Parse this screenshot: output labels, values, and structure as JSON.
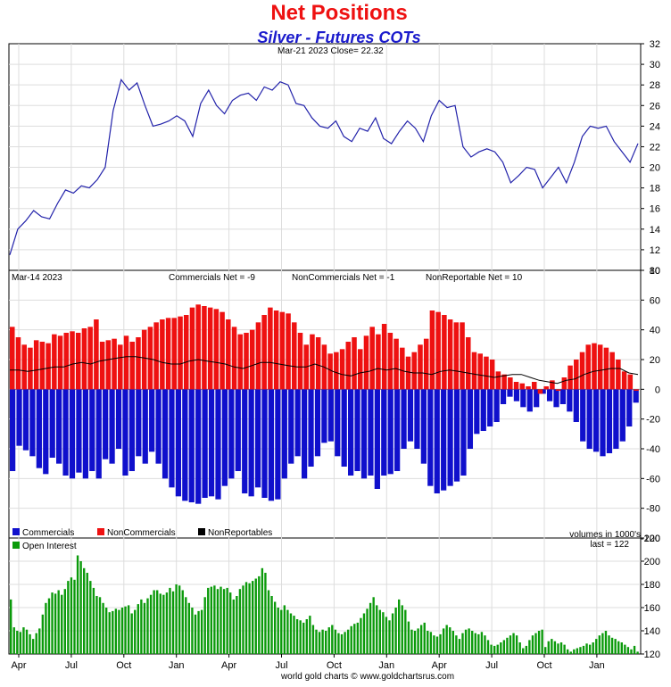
{
  "title": "Net Positions",
  "subtitle": "Silver - Futures COTs",
  "footer": "world gold charts © www.goldchartsrus.com",
  "colors": {
    "title": "#ee1111",
    "subtitle": "#1a1acc",
    "price_line": "#2222aa",
    "commercials": "#1010cc",
    "noncommercials": "#ee1111",
    "nonreportables": "#000000",
    "open_interest": "#0a9a0a"
  },
  "chart_data": [
    {
      "type": "line",
      "header": "Mar-21  2023    Close= 22.32",
      "ylim": [
        10,
        32
      ],
      "yticks": [
        "10",
        "12",
        "14",
        "16",
        "18",
        "20",
        "22",
        "24",
        "26",
        "28",
        "30",
        "32"
      ],
      "x_labels": [
        "Apr",
        "Jul",
        "Oct",
        "Jan",
        "Apr",
        "Jul",
        "Oct",
        "Jan",
        "Apr",
        "Jul",
        "Oct",
        "Jan"
      ],
      "series": [
        {
          "values": [
            11.5,
            14.0,
            14.8,
            15.8,
            15.2,
            15.0,
            16.5,
            17.8,
            17.5,
            18.2,
            18.0,
            18.8,
            20.0,
            25.5,
            28.5,
            27.5,
            28.2,
            26.0,
            24.0,
            24.2,
            24.5,
            25.0,
            24.5,
            23.0,
            26.2,
            27.5,
            26.0,
            25.2,
            26.5,
            27.0,
            27.2,
            26.5,
            27.8,
            27.5,
            28.3,
            28.0,
            26.2,
            26.0,
            24.8,
            24.0,
            23.8,
            24.5,
            23.0,
            22.5,
            23.8,
            23.5,
            24.8,
            22.8,
            22.3,
            23.5,
            24.5,
            23.8,
            22.5,
            25.0,
            26.5,
            25.8,
            26.0,
            22.0,
            21.0,
            21.5,
            21.8,
            21.5,
            20.5,
            18.5,
            19.2,
            20.0,
            19.8,
            18.0,
            19.0,
            20.0,
            18.5,
            20.5,
            23.0,
            24.0,
            23.8,
            24.0,
            22.5,
            21.5,
            20.5,
            22.32
          ]
        }
      ]
    },
    {
      "type": "bar",
      "header": "Mar-14  2023",
      "readouts": [
        "Commercials Net = -9",
        "NonCommercials Net = -1",
        "NonReportable Net = 10"
      ],
      "ylim": [
        -100,
        80
      ],
      "yticks": [
        "-100",
        "-80",
        "-60",
        "-40",
        "-20",
        "0",
        "20",
        "40",
        "60",
        "80"
      ],
      "legend": [
        "Commercials",
        "NonCommercials",
        "NonReportables"
      ],
      "series": [
        {
          "name": "Commercials",
          "values": [
            -55,
            -38,
            -41,
            -45,
            -53,
            -57,
            -46,
            -50,
            -58,
            -60,
            -56,
            -60,
            -55,
            -60,
            -47,
            -50,
            -40,
            -58,
            -55,
            -45,
            -50,
            -42,
            -50,
            -60,
            -66,
            -72,
            -75,
            -76,
            -77,
            -73,
            -72,
            -74,
            -65,
            -60,
            -55,
            -70,
            -72,
            -66,
            -73,
            -75,
            -74,
            -60,
            -50,
            -45,
            -60,
            -52,
            -45,
            -36,
            -35,
            -45,
            -52,
            -58,
            -55,
            -60,
            -58,
            -67,
            -58,
            -57,
            -55,
            -40,
            -35,
            -40,
            -50,
            -65,
            -70,
            -68,
            -65,
            -62,
            -58,
            -40,
            -30,
            -28,
            -25,
            -22,
            -10,
            -5,
            -8,
            -12,
            -15,
            -12,
            -3,
            -8,
            -12,
            -10,
            -15,
            -22,
            -35,
            -40,
            -42,
            -45,
            -43,
            -40,
            -35,
            -25,
            -9
          ],
          "color": "#1010cc"
        },
        {
          "name": "NonCommercials",
          "values": [
            42,
            35,
            30,
            28,
            33,
            32,
            31,
            37,
            36,
            38,
            39,
            38,
            41,
            42,
            47,
            32,
            33,
            34,
            30,
            36,
            32,
            35,
            40,
            42,
            45,
            47,
            48,
            48,
            49,
            50,
            55,
            57,
            56,
            55,
            54,
            52,
            47,
            42,
            37,
            38,
            40,
            45,
            50,
            55,
            53,
            52,
            51,
            45,
            38,
            30,
            37,
            35,
            30,
            24,
            25,
            27,
            32,
            35,
            27,
            36,
            42,
            37,
            44,
            38,
            34,
            28,
            22,
            25,
            30,
            34,
            53,
            52,
            50,
            47,
            45,
            45,
            35,
            25,
            24,
            22,
            20,
            12,
            10,
            8,
            5,
            4,
            2,
            5,
            -3,
            2,
            6,
            -1,
            8,
            16,
            20,
            25,
            30,
            31,
            30,
            28,
            25,
            20,
            12,
            10,
            -1
          ],
          "color": "#ee1111"
        },
        {
          "name": "NonReportables",
          "values": [
            13,
            13,
            12,
            13,
            14,
            15,
            15,
            17,
            18,
            17,
            19,
            20,
            21,
            22,
            22,
            21,
            20,
            18,
            17,
            17,
            19,
            20,
            19,
            18,
            17,
            15,
            14,
            16,
            18,
            18,
            17,
            16,
            15,
            15,
            17,
            15,
            12,
            10,
            9,
            11,
            12,
            14,
            13,
            14,
            12,
            11,
            11,
            10,
            12,
            13,
            12,
            11,
            10,
            9,
            8,
            9,
            10,
            10,
            8,
            6,
            5,
            4,
            6,
            7,
            10,
            12,
            13,
            14,
            14,
            11,
            10
          ],
          "color": "#000000"
        }
      ]
    },
    {
      "type": "bar",
      "header_right": [
        "volumes in 1000's",
        "last = 122"
      ],
      "ylim": [
        120,
        220
      ],
      "yticks": [
        "120",
        "140",
        "160",
        "180",
        "200",
        "220"
      ],
      "legend": [
        "Open Interest"
      ],
      "series": [
        {
          "name": "Open Interest",
          "values": [
            167,
            143,
            140,
            139,
            143,
            141,
            137,
            133,
            138,
            142,
            154,
            164,
            168,
            173,
            172,
            175,
            171,
            176,
            183,
            186,
            184,
            205,
            200,
            194,
            190,
            183,
            177,
            170,
            169,
            164,
            160,
            156,
            157,
            159,
            158,
            160,
            161,
            162,
            155,
            158,
            163,
            167,
            164,
            168,
            171,
            175,
            175,
            172,
            171,
            173,
            177,
            174,
            180,
            179,
            175,
            169,
            164,
            160,
            154,
            157,
            158,
            169,
            177,
            178,
            179,
            176,
            178,
            176,
            177,
            173,
            167,
            170,
            176,
            179,
            182,
            181,
            183,
            185,
            187,
            194,
            190,
            175,
            170,
            165,
            160,
            158,
            162,
            158,
            155,
            153,
            150,
            149,
            147,
            150,
            153,
            145,
            141,
            139,
            141,
            140,
            143,
            145,
            141,
            138,
            137,
            139,
            141,
            144,
            146,
            147,
            151,
            155,
            159,
            164,
            169,
            162,
            158,
            156,
            152,
            149,
            155,
            160,
            167,
            162,
            158,
            148,
            141,
            140,
            142,
            145,
            147,
            140,
            139,
            136,
            135,
            137,
            142,
            145,
            143,
            140,
            136,
            133,
            138,
            141,
            142,
            140,
            138,
            137,
            139,
            136,
            132,
            128,
            127,
            128,
            130,
            132,
            134,
            136,
            138,
            136,
            130,
            125,
            127,
            132,
            136,
            138,
            140,
            141,
            126,
            131,
            133,
            131,
            129,
            130,
            128,
            124,
            122,
            124,
            125,
            126,
            127,
            129,
            128,
            130,
            133,
            136,
            138,
            140,
            136,
            134,
            133,
            131,
            130,
            128,
            126,
            124,
            127,
            122
          ]
        }
      ]
    }
  ]
}
